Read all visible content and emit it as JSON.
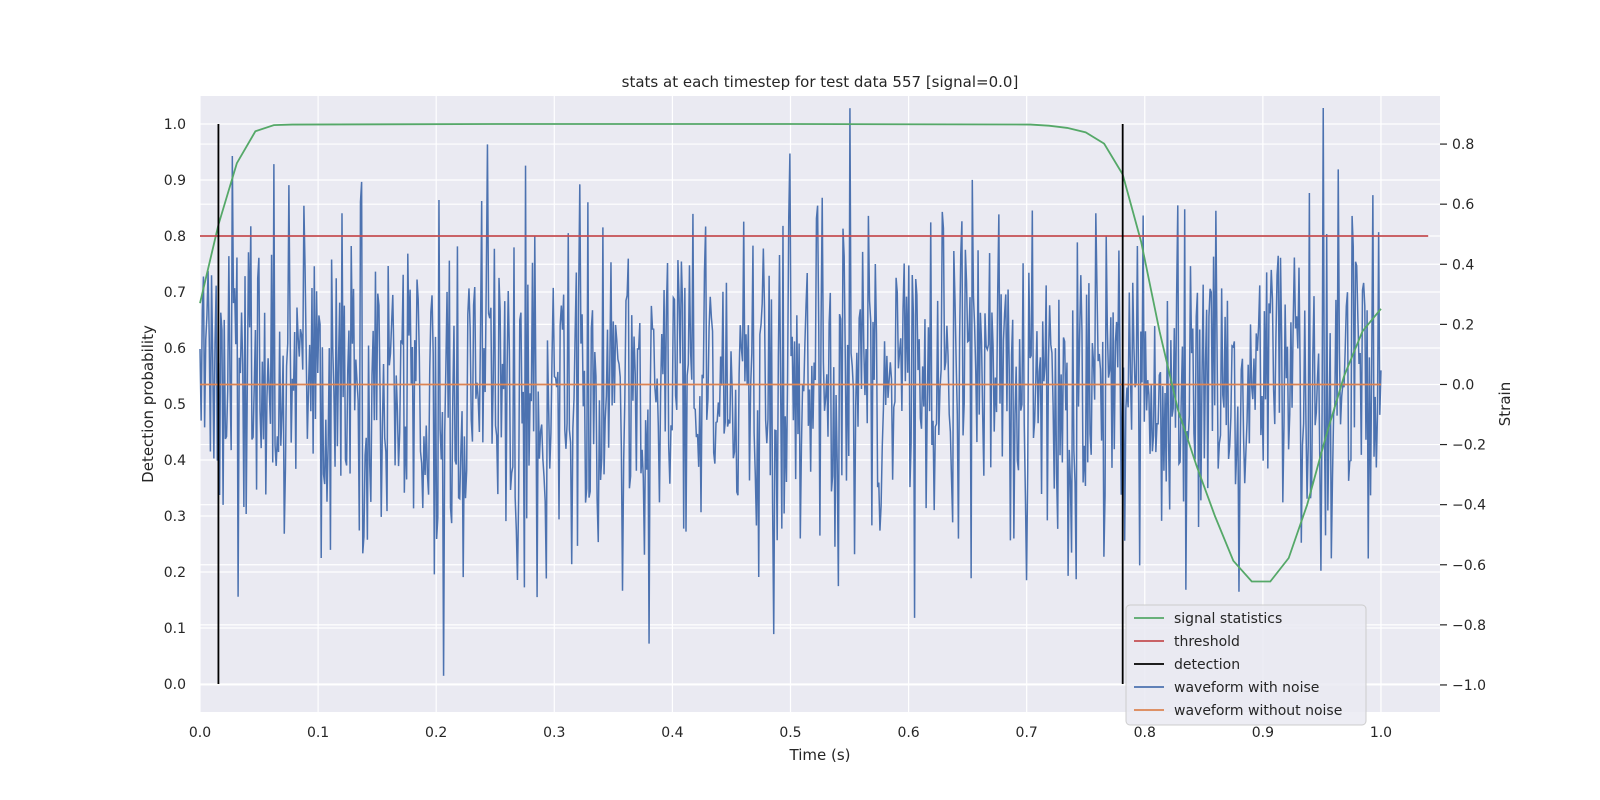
{
  "chart_data": {
    "type": "line",
    "title": "stats at each timestep for test data 557 [signal=0.0]",
    "xlabel": "Time (s)",
    "ylabel_left": "Detection probability",
    "ylabel_right": "Strain",
    "xlim": [
      0.0,
      1.05
    ],
    "ylim_left": [
      -0.05,
      1.05
    ],
    "ylim_right": [
      -1.09,
      0.96
    ],
    "x_ticks": [
      "0.0",
      "0.1",
      "0.2",
      "0.3",
      "0.4",
      "0.5",
      "0.6",
      "0.7",
      "0.8",
      "0.9",
      "1.0"
    ],
    "x_tick_values": [
      0.0,
      0.1,
      0.2,
      0.3,
      0.4,
      0.5,
      0.6,
      0.7,
      0.8,
      0.9,
      1.0
    ],
    "y_ticks_left": [
      "0.0",
      "0.1",
      "0.2",
      "0.3",
      "0.4",
      "0.5",
      "0.6",
      "0.7",
      "0.8",
      "0.9",
      "1.0"
    ],
    "y_tick_values_left": [
      0.0,
      0.1,
      0.2,
      0.3,
      0.4,
      0.5,
      0.6,
      0.7,
      0.8,
      0.9,
      1.0
    ],
    "y_ticks_right": [
      "−1.0",
      "−0.8",
      "−0.6",
      "−0.4",
      "−0.2",
      "0.0",
      "0.2",
      "0.4",
      "0.6",
      "0.8"
    ],
    "y_tick_values_right": [
      -1.0,
      -0.8,
      -0.6,
      -0.4,
      -0.2,
      0.0,
      0.2,
      0.4,
      0.6,
      0.8
    ],
    "grid": true,
    "legend_position": "lower-right",
    "series": [
      {
        "name": "signal statistics",
        "axis": "left",
        "color": "#55a868",
        "x": [
          0.0,
          0.0156,
          0.0312,
          0.0469,
          0.0625,
          0.0781,
          0.25,
          0.5,
          0.7031,
          0.7188,
          0.7344,
          0.75,
          0.7656,
          0.7813,
          0.7969,
          0.8125,
          0.8281,
          0.8438,
          0.8594,
          0.875,
          0.8906,
          0.9063,
          0.9219,
          0.9375,
          0.9531,
          0.9688,
          0.9844,
          1.0
        ],
        "y": [
          0.68,
          0.82,
          0.93,
          0.987,
          0.998,
          0.999,
          1.0,
          1.0,
          0.999,
          0.997,
          0.993,
          0.985,
          0.965,
          0.91,
          0.79,
          0.63,
          0.49,
          0.39,
          0.3,
          0.22,
          0.183,
          0.183,
          0.225,
          0.32,
          0.44,
          0.55,
          0.63,
          0.67
        ]
      },
      {
        "name": "threshold",
        "axis": "left",
        "color": "#c44e52",
        "x": [
          0.0,
          1.04
        ],
        "y": [
          0.8,
          0.8
        ]
      },
      {
        "name": "detection",
        "axis": "left",
        "color": "#000000",
        "segments": [
          {
            "x": 0.0156,
            "y": [
              0.0,
              1.0
            ]
          },
          {
            "x": 0.7813,
            "y": [
              0.0,
              1.0
            ]
          }
        ]
      },
      {
        "name": "waveform with noise",
        "axis": "right",
        "color": "#4c72b0",
        "x_range": [
          0.0,
          1.0
        ],
        "n_points": 1024,
        "seed": 557,
        "std": 0.3,
        "min": -1.0,
        "max": 0.92
      },
      {
        "name": "waveform without noise",
        "axis": "right",
        "color": "#dd8452",
        "x": [
          0.0,
          1.0
        ],
        "y": [
          0.0,
          0.0
        ]
      }
    ]
  }
}
